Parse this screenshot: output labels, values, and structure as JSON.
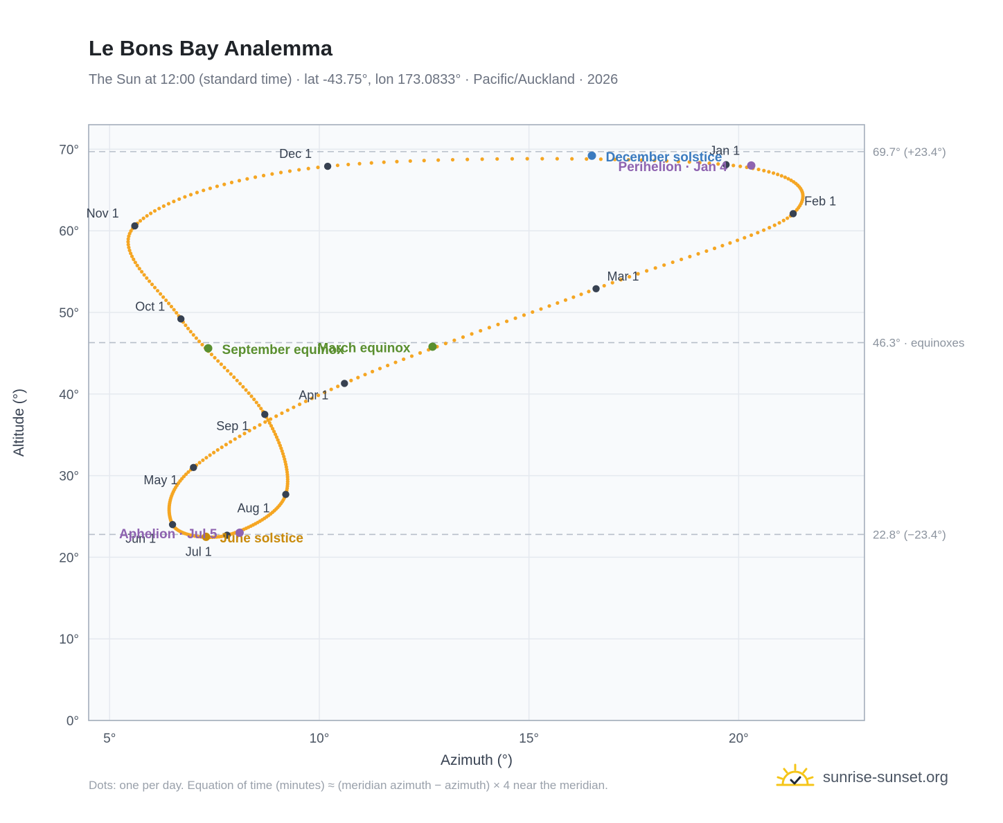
{
  "title": "Le Bons Bay Analemma",
  "subtitle": "The Sun at 12:00 (standard time) · lat -43.75°, lon 173.0833° · Pacific/Auckland · 2026",
  "footnote": "Dots: one per day. Equation of time (minutes) ≈ (meridian azimuth − azimuth) × 4 near the meridian.",
  "brand": {
    "name": "sunrise-sunset.org",
    "icon": "sun-logo-icon"
  },
  "colors": {
    "curve": "#f5a623",
    "month_dot": "#374151",
    "equinox": "#5a8f2f",
    "december_solstice": "#3b7bbf",
    "june_solstice": "#c98a0a",
    "perihelion": "#8e63b0",
    "plot_bg": "#f8fafc",
    "grid": "#e5e9ef",
    "refline": "#b6bec9"
  },
  "chart_data": {
    "type": "scatter",
    "title": "Le Bons Bay Analemma",
    "xlabel": "Azimuth (°)",
    "ylabel": "Altitude (°)",
    "xlim": [
      4.5,
      23
    ],
    "ylim": [
      0,
      73
    ],
    "x_ticks": [
      5,
      10,
      15,
      20
    ],
    "x_tick_labels": [
      "5°",
      "10°",
      "15°",
      "20°"
    ],
    "y_ticks": [
      0,
      10,
      20,
      30,
      40,
      50,
      60,
      70
    ],
    "y_tick_labels": [
      "0°",
      "10°",
      "20°",
      "30°",
      "40°",
      "50°",
      "60°",
      "70°"
    ],
    "grid": true,
    "reference_lines": [
      {
        "y": 69.7,
        "label": "69.7° (+23.4°)"
      },
      {
        "y": 46.3,
        "label": "46.3° · equinoxes"
      },
      {
        "y": 22.8,
        "label": "22.8° (−23.4°)"
      }
    ],
    "series": [
      {
        "points": [
          [
            19.7,
            68.1
          ],
          [
            21.3,
            62.1
          ],
          [
            16.6,
            52.9
          ],
          [
            10.6,
            41.3
          ],
          [
            7.0,
            31.0
          ],
          [
            6.5,
            24.0
          ],
          [
            7.8,
            22.7
          ],
          [
            9.2,
            27.7
          ],
          [
            8.7,
            37.5
          ],
          [
            6.7,
            49.2
          ],
          [
            5.6,
            60.6
          ],
          [
            10.2,
            67.9
          ]
        ]
      }
    ],
    "month_markers": [
      {
        "label": "Jan 1",
        "x": 19.7,
        "y": 68.1
      },
      {
        "label": "Feb 1",
        "x": 21.3,
        "y": 62.1
      },
      {
        "label": "Mar 1",
        "x": 16.6,
        "y": 52.9
      },
      {
        "label": "Apr 1",
        "x": 10.6,
        "y": 41.3
      },
      {
        "label": "May 1",
        "x": 7.0,
        "y": 31.0
      },
      {
        "label": "Jun 1",
        "x": 6.5,
        "y": 24.0
      },
      {
        "label": "Jul 1",
        "x": 7.8,
        "y": 22.7
      },
      {
        "label": "Aug 1",
        "x": 9.2,
        "y": 27.7
      },
      {
        "label": "Sep 1",
        "x": 8.7,
        "y": 37.5
      },
      {
        "label": "Oct 1",
        "x": 6.7,
        "y": 49.2
      },
      {
        "label": "Nov 1",
        "x": 5.6,
        "y": 60.6
      },
      {
        "label": "Dec 1",
        "x": 10.2,
        "y": 67.9
      }
    ],
    "events": [
      {
        "label": "March equinox",
        "x": 12.7,
        "y": 45.8,
        "color_key": "equinox"
      },
      {
        "label": "September equinox",
        "x": 7.35,
        "y": 45.6,
        "color_key": "equinox"
      },
      {
        "label": "December solstice",
        "x": 16.5,
        "y": 69.2,
        "color_key": "december_solstice"
      },
      {
        "label": "June solstice",
        "x": 7.3,
        "y": 22.5,
        "color_key": "june_solstice"
      },
      {
        "label": "Perihelion · Jan 4",
        "x": 20.3,
        "y": 68.0,
        "color_key": "perihelion"
      },
      {
        "label": "Aphelion · Jul 5",
        "x": 8.1,
        "y": 23.0,
        "color_key": "perihelion"
      }
    ]
  }
}
